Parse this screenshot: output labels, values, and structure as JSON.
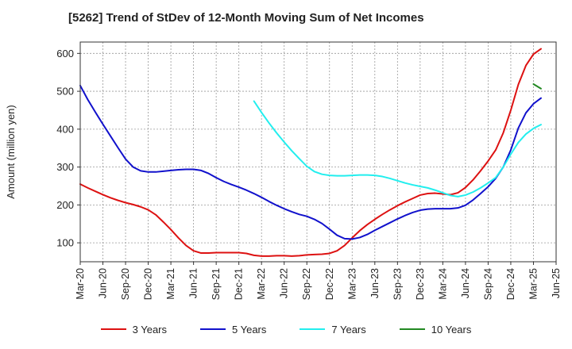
{
  "chart_data": {
    "type": "line",
    "title": "[5262]  Trend of StDev of 12-Month Moving Sum of Net Incomes",
    "ylabel": "Amount (million yen)",
    "xlabel": "",
    "ylim": [
      50,
      630
    ],
    "yticks": [
      100,
      200,
      300,
      400,
      500,
      600
    ],
    "xlim": [
      "2020-03",
      "2025-06"
    ],
    "x_tick_labels": [
      "Mar-20",
      "Jun-20",
      "Sep-20",
      "Dec-20",
      "Mar-21",
      "Jun-21",
      "Sep-21",
      "Dec-21",
      "Mar-22",
      "Jun-22",
      "Sep-22",
      "Dec-22",
      "Mar-23",
      "Jun-23",
      "Sep-23",
      "Dec-23",
      "Mar-24",
      "Jun-24",
      "Sep-24",
      "Dec-24",
      "Mar-25",
      "Jun-25"
    ],
    "grid": true,
    "legend_position": "bottom",
    "series": [
      {
        "name": "3 Years",
        "color": "#dd1111",
        "points": [
          [
            "2020-03",
            255
          ],
          [
            "2020-04",
            245
          ],
          [
            "2020-05",
            236
          ],
          [
            "2020-06",
            227
          ],
          [
            "2020-07",
            219
          ],
          [
            "2020-08",
            212
          ],
          [
            "2020-09",
            206
          ],
          [
            "2020-10",
            201
          ],
          [
            "2020-11",
            195
          ],
          [
            "2020-12",
            187
          ],
          [
            "2021-01",
            174
          ],
          [
            "2021-02",
            155
          ],
          [
            "2021-03",
            135
          ],
          [
            "2021-04",
            113
          ],
          [
            "2021-05",
            93
          ],
          [
            "2021-06",
            79
          ],
          [
            "2021-07",
            73
          ],
          [
            "2021-08",
            73
          ],
          [
            "2021-09",
            74
          ],
          [
            "2021-10",
            74
          ],
          [
            "2021-11",
            74
          ],
          [
            "2021-12",
            74
          ],
          [
            "2022-01",
            72
          ],
          [
            "2022-02",
            67
          ],
          [
            "2022-03",
            65
          ],
          [
            "2022-04",
            65
          ],
          [
            "2022-05",
            66
          ],
          [
            "2022-06",
            66
          ],
          [
            "2022-07",
            65
          ],
          [
            "2022-08",
            66
          ],
          [
            "2022-09",
            68
          ],
          [
            "2022-10",
            69
          ],
          [
            "2022-11",
            70
          ],
          [
            "2022-12",
            72
          ],
          [
            "2023-01",
            79
          ],
          [
            "2023-02",
            93
          ],
          [
            "2023-03",
            113
          ],
          [
            "2023-04",
            132
          ],
          [
            "2023-05",
            148
          ],
          [
            "2023-06",
            162
          ],
          [
            "2023-07",
            175
          ],
          [
            "2023-08",
            187
          ],
          [
            "2023-09",
            198
          ],
          [
            "2023-10",
            208
          ],
          [
            "2023-11",
            217
          ],
          [
            "2023-12",
            226
          ],
          [
            "2024-01",
            230
          ],
          [
            "2024-02",
            231
          ],
          [
            "2024-03",
            229
          ],
          [
            "2024-04",
            227
          ],
          [
            "2024-05",
            232
          ],
          [
            "2024-06",
            246
          ],
          [
            "2024-07",
            266
          ],
          [
            "2024-08",
            290
          ],
          [
            "2024-09",
            316
          ],
          [
            "2024-10",
            345
          ],
          [
            "2024-11",
            390
          ],
          [
            "2024-12",
            450
          ],
          [
            "2025-01",
            518
          ],
          [
            "2025-02",
            568
          ],
          [
            "2025-03",
            598
          ],
          [
            "2025-04",
            612
          ]
        ]
      },
      {
        "name": "5 Years",
        "color": "#1111cc",
        "points": [
          [
            "2020-03",
            515
          ],
          [
            "2020-04",
            478
          ],
          [
            "2020-05",
            445
          ],
          [
            "2020-06",
            413
          ],
          [
            "2020-07",
            382
          ],
          [
            "2020-08",
            351
          ],
          [
            "2020-09",
            321
          ],
          [
            "2020-10",
            300
          ],
          [
            "2020-11",
            290
          ],
          [
            "2020-12",
            287
          ],
          [
            "2021-01",
            287
          ],
          [
            "2021-02",
            289
          ],
          [
            "2021-03",
            291
          ],
          [
            "2021-04",
            293
          ],
          [
            "2021-05",
            294
          ],
          [
            "2021-06",
            294
          ],
          [
            "2021-07",
            291
          ],
          [
            "2021-08",
            283
          ],
          [
            "2021-09",
            272
          ],
          [
            "2021-10",
            262
          ],
          [
            "2021-11",
            254
          ],
          [
            "2021-12",
            247
          ],
          [
            "2022-01",
            239
          ],
          [
            "2022-02",
            230
          ],
          [
            "2022-03",
            220
          ],
          [
            "2022-04",
            209
          ],
          [
            "2022-05",
            199
          ],
          [
            "2022-06",
            190
          ],
          [
            "2022-07",
            182
          ],
          [
            "2022-08",
            175
          ],
          [
            "2022-09",
            170
          ],
          [
            "2022-10",
            162
          ],
          [
            "2022-11",
            151
          ],
          [
            "2022-12",
            136
          ],
          [
            "2023-01",
            120
          ],
          [
            "2023-02",
            111
          ],
          [
            "2023-03",
            110
          ],
          [
            "2023-04",
            114
          ],
          [
            "2023-05",
            122
          ],
          [
            "2023-06",
            133
          ],
          [
            "2023-07",
            143
          ],
          [
            "2023-08",
            153
          ],
          [
            "2023-09",
            163
          ],
          [
            "2023-10",
            172
          ],
          [
            "2023-11",
            180
          ],
          [
            "2023-12",
            186
          ],
          [
            "2024-01",
            189
          ],
          [
            "2024-02",
            190
          ],
          [
            "2024-03",
            190
          ],
          [
            "2024-04",
            190
          ],
          [
            "2024-05",
            192
          ],
          [
            "2024-06",
            199
          ],
          [
            "2024-07",
            213
          ],
          [
            "2024-08",
            230
          ],
          [
            "2024-09",
            248
          ],
          [
            "2024-10",
            270
          ],
          [
            "2024-11",
            300
          ],
          [
            "2024-12",
            345
          ],
          [
            "2025-01",
            403
          ],
          [
            "2025-02",
            443
          ],
          [
            "2025-03",
            467
          ],
          [
            "2025-04",
            482
          ]
        ]
      },
      {
        "name": "7 Years",
        "color": "#22eeee",
        "points": [
          [
            "2022-02",
            474
          ],
          [
            "2022-03",
            444
          ],
          [
            "2022-04",
            416
          ],
          [
            "2022-05",
            390
          ],
          [
            "2022-06",
            366
          ],
          [
            "2022-07",
            343
          ],
          [
            "2022-08",
            322
          ],
          [
            "2022-09",
            302
          ],
          [
            "2022-10",
            288
          ],
          [
            "2022-11",
            281
          ],
          [
            "2022-12",
            278
          ],
          [
            "2023-01",
            277
          ],
          [
            "2023-02",
            277
          ],
          [
            "2023-03",
            278
          ],
          [
            "2023-04",
            279
          ],
          [
            "2023-05",
            279
          ],
          [
            "2023-06",
            278
          ],
          [
            "2023-07",
            275
          ],
          [
            "2023-08",
            270
          ],
          [
            "2023-09",
            264
          ],
          [
            "2023-10",
            258
          ],
          [
            "2023-11",
            253
          ],
          [
            "2023-12",
            249
          ],
          [
            "2024-01",
            245
          ],
          [
            "2024-02",
            239
          ],
          [
            "2024-03",
            232
          ],
          [
            "2024-04",
            225
          ],
          [
            "2024-05",
            222
          ],
          [
            "2024-06",
            226
          ],
          [
            "2024-07",
            234
          ],
          [
            "2024-08",
            245
          ],
          [
            "2024-09",
            258
          ],
          [
            "2024-10",
            272
          ],
          [
            "2024-11",
            300
          ],
          [
            "2024-12",
            334
          ],
          [
            "2025-01",
            365
          ],
          [
            "2025-02",
            387
          ],
          [
            "2025-03",
            402
          ],
          [
            "2025-04",
            412
          ]
        ]
      },
      {
        "name": "10 Years",
        "color": "#228822",
        "points": [
          [
            "2025-03",
            519
          ],
          [
            "2025-04",
            507
          ]
        ]
      }
    ]
  }
}
